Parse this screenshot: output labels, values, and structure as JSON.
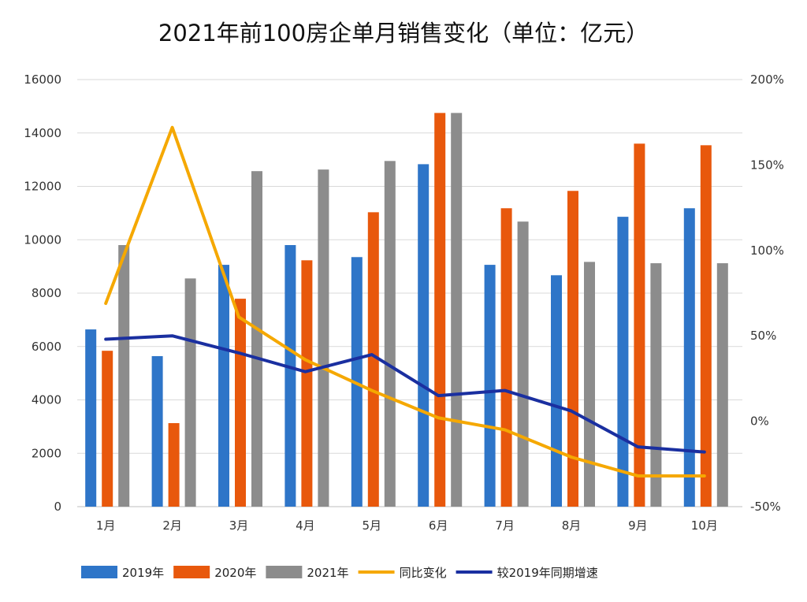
{
  "chart_data": {
    "type": "bar",
    "title": "2021年前100房企单月销售变化（单位：亿元）",
    "categories": [
      "1月",
      "2月",
      "3月",
      "4月",
      "5月",
      "6月",
      "7月",
      "8月",
      "9月",
      "10月"
    ],
    "ylim": [
      0,
      16000
    ],
    "yticks": [
      "0",
      "2000",
      "4000",
      "6000",
      "8000",
      "10000",
      "12000",
      "14000",
      "16000"
    ],
    "y2lim": [
      -50,
      200
    ],
    "y2ticks": [
      "-50%",
      "0%",
      "50%",
      "100%",
      "150%",
      "200%"
    ],
    "grid": true,
    "legend_position": "bottom",
    "series": [
      {
        "name": "2019年",
        "type": "bar",
        "axis": "left",
        "color": "#2e75c8",
        "values": [
          6640,
          5640,
          9060,
          9800,
          9350,
          12830,
          9060,
          8670,
          10860,
          11180
        ]
      },
      {
        "name": "2020年",
        "type": "bar",
        "axis": "left",
        "color": "#e8580c",
        "values": [
          5840,
          3130,
          7790,
          9230,
          11030,
          14750,
          11180,
          11830,
          13600,
          13540
        ]
      },
      {
        "name": "2021年",
        "type": "bar",
        "axis": "left",
        "color": "#8c8c8c",
        "values": [
          9800,
          8550,
          12570,
          12630,
          12950,
          14750,
          10680,
          9170,
          9120,
          9120
        ]
      },
      {
        "name": "同比变化",
        "type": "line",
        "axis": "right",
        "color": "#f5a800",
        "values": [
          69,
          172,
          61,
          36,
          18,
          2,
          -5,
          -21,
          -32,
          -32
        ]
      },
      {
        "name": "较2019年同期增速",
        "type": "line",
        "axis": "right",
        "color": "#1a2fa0",
        "values": [
          48,
          50,
          40,
          29,
          39,
          15,
          18,
          6,
          -15,
          -18
        ]
      }
    ]
  }
}
